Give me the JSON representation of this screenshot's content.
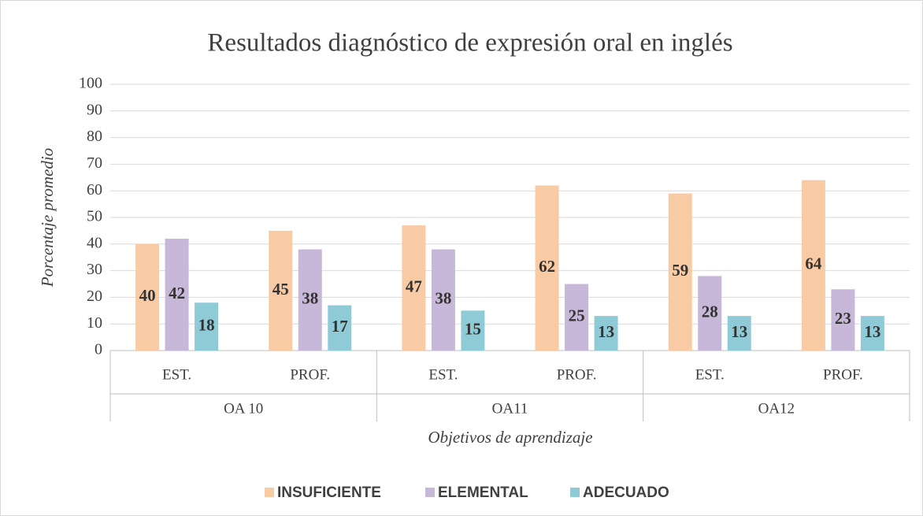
{
  "chart_data": {
    "type": "bar",
    "title": "Resultados diagnóstico de expresión oral en inglés",
    "y_label": "Porcentaje promedio",
    "x_label": "Objetivos de aprendizaje",
    "categories": [
      "EST.",
      "PROF.",
      "EST.",
      "PROF.",
      "EST.",
      "PROF."
    ],
    "category_groups": [
      "OA 10",
      "OA11",
      "OA12"
    ],
    "series": [
      {
        "name": "INSUFICIENTE",
        "color": "#f9cba4",
        "values": [
          40,
          45,
          47,
          62,
          59,
          64
        ]
      },
      {
        "name": "ELEMENTAL",
        "color": "#c7b8d9",
        "values": [
          42,
          38,
          38,
          25,
          28,
          23
        ]
      },
      {
        "name": "ADECUADO",
        "color": "#8fcbd7",
        "values": [
          18,
          17,
          15,
          13,
          13,
          13
        ]
      }
    ],
    "ylim": [
      0,
      100
    ],
    "yticks": [
      0,
      10,
      20,
      30,
      40,
      50,
      60,
      70,
      80,
      90,
      100
    ],
    "grid": true,
    "legend": "bottom"
  }
}
